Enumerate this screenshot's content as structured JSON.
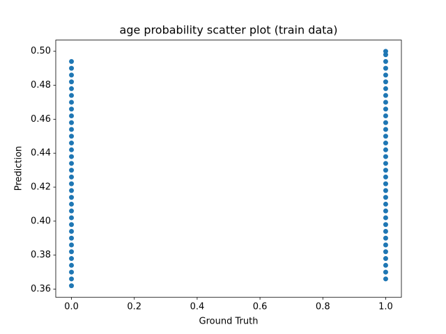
{
  "chart_data": {
    "type": "scatter",
    "title": "age probability scatter plot (train data)",
    "x_label": "Ground Truth",
    "y_label": "Prediction",
    "color": "#1f77b4",
    "x": [
      0,
      0,
      0,
      0,
      0,
      0,
      0,
      0,
      0,
      0,
      0,
      0,
      0,
      0,
      0,
      0,
      0,
      0,
      0,
      0,
      0,
      0,
      0,
      0,
      0,
      0,
      0,
      0,
      0,
      0,
      0,
      0,
      0,
      0,
      1,
      1,
      1,
      1,
      1,
      1,
      1,
      1,
      1,
      1,
      1,
      1,
      1,
      1,
      1,
      1,
      1,
      1,
      1,
      1,
      1,
      1,
      1,
      1,
      1,
      1,
      1,
      1,
      1,
      1,
      1,
      1,
      1,
      1,
      1
    ],
    "values": [
      0.362,
      0.366,
      0.37,
      0.374,
      0.378,
      0.382,
      0.386,
      0.39,
      0.394,
      0.398,
      0.402,
      0.406,
      0.41,
      0.414,
      0.418,
      0.422,
      0.426,
      0.43,
      0.434,
      0.438,
      0.442,
      0.446,
      0.45,
      0.454,
      0.458,
      0.462,
      0.466,
      0.47,
      0.474,
      0.478,
      0.482,
      0.486,
      0.49,
      0.494,
      0.366,
      0.37,
      0.374,
      0.378,
      0.382,
      0.386,
      0.39,
      0.394,
      0.398,
      0.402,
      0.406,
      0.41,
      0.414,
      0.418,
      0.422,
      0.426,
      0.43,
      0.434,
      0.438,
      0.442,
      0.446,
      0.45,
      0.454,
      0.458,
      0.462,
      0.466,
      0.47,
      0.474,
      0.478,
      0.482,
      0.486,
      0.49,
      0.494,
      0.498,
      0.5
    ],
    "xlim": [
      -0.05,
      1.05
    ],
    "xticks": [
      {
        "value": 0,
        "label": "0.0"
      },
      {
        "value": 0.2,
        "label": "0.2"
      },
      {
        "value": 0.4,
        "label": "0.4"
      },
      {
        "value": 0.6,
        "label": "0.6"
      },
      {
        "value": 0.8,
        "label": "0.8"
      },
      {
        "value": 1,
        "label": "1.0"
      }
    ],
    "ylim": [
      0.3552,
      0.5066
    ],
    "yticks": [
      0.36,
      0.38,
      {
        "value": 0.4,
        "label": "0.40"
      },
      0.42,
      0.44,
      0.46,
      0.48,
      {
        "value": 0.5,
        "label": "0.50"
      }
    ]
  }
}
